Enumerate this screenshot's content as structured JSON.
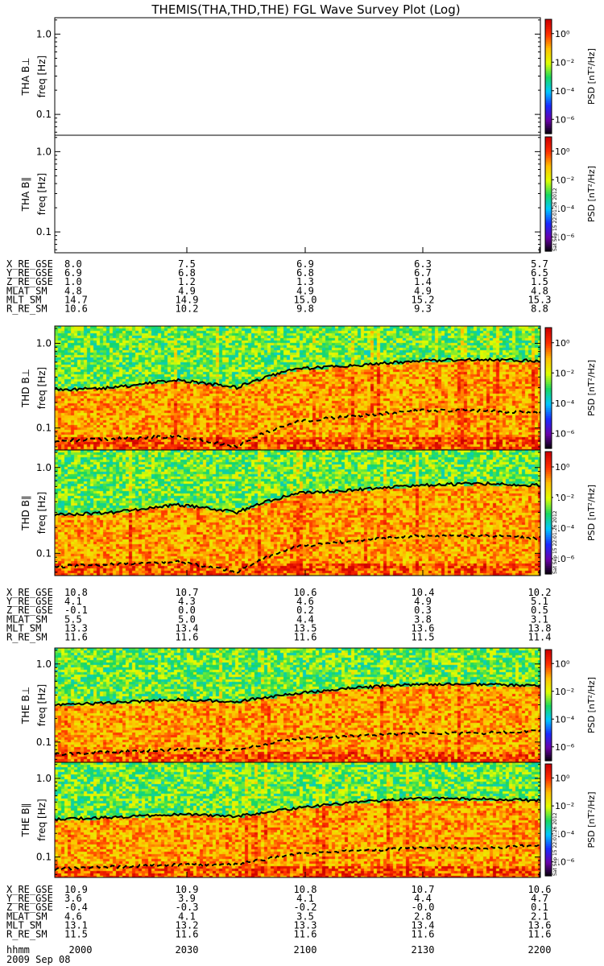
{
  "title": "THEMIS(THA,THD,THE) FGL Wave Survey Plot (Log)",
  "colors": {
    "colorscale": [
      "#000000",
      "#6a00aa",
      "#1a2bff",
      "#00c8ff",
      "#18d860",
      "#e0ff00",
      "#ffc000",
      "#ff3000",
      "#d00000"
    ],
    "trace": "#000000"
  },
  "colorbar": {
    "label": "PSD [nT²/Hz]",
    "ticks": [
      "10⁰",
      "10⁻²",
      "10⁻⁴",
      "10⁻⁶"
    ],
    "tick_exponents": [
      0,
      -2,
      -4,
      -6
    ],
    "range_exponents": [
      -7,
      1
    ]
  },
  "stamp": "Sat Sep 15 22:01:26 2012",
  "date_label": "2009 Sep 08",
  "time_axis_label": "hhmm",
  "time_ticks": [
    "2000",
    "2030",
    "2100",
    "2130",
    "2200"
  ],
  "chart_data": [
    {
      "type": "heatmap",
      "probe": "THA",
      "component": "⊥",
      "ylabel_probe": "THA B⊥",
      "ylabel": "freq [Hz]",
      "y_scale": "log",
      "ylim": [
        0.055,
        1.6
      ],
      "ytick_labels": [
        "1.0",
        "0.1"
      ],
      "ytick_values": [
        1.0,
        0.1
      ],
      "has_data": false
    },
    {
      "type": "heatmap",
      "probe": "THA",
      "component": "∥",
      "ylabel_probe": "THA B∥",
      "ylabel": "freq [Hz]",
      "y_scale": "log",
      "ylim": [
        0.055,
        1.6
      ],
      "ytick_labels": [
        "1.0",
        "0.1"
      ],
      "ytick_values": [
        1.0,
        0.1
      ],
      "has_data": false
    },
    {
      "type": "heatmap",
      "probe": "THD",
      "component": "⊥",
      "ylabel_probe": "THD B⊥",
      "ylabel": "freq [Hz]",
      "y_scale": "log",
      "ylim": [
        0.055,
        1.6
      ],
      "ytick_labels": [
        "1.0",
        "0.1"
      ],
      "ytick_values": [
        1.0,
        0.1
      ],
      "has_data": true,
      "seed": 11,
      "x_hours": [
        20.0,
        20.25,
        20.5,
        20.75,
        21.0,
        21.25,
        21.5,
        21.75,
        22.0
      ],
      "upper_line_hz": [
        0.28,
        0.3,
        0.37,
        0.3,
        0.5,
        0.55,
        0.62,
        0.65,
        0.62
      ],
      "lower_line_hz": [
        0.07,
        0.075,
        0.08,
        0.06,
        0.12,
        0.14,
        0.16,
        0.16,
        0.15
      ]
    },
    {
      "type": "heatmap",
      "probe": "THD",
      "component": "∥",
      "ylabel_probe": "THD B∥",
      "ylabel": "freq [Hz]",
      "y_scale": "log",
      "ylim": [
        0.055,
        1.6
      ],
      "ytick_labels": [
        "1.0",
        "0.1"
      ],
      "ytick_values": [
        1.0,
        0.1
      ],
      "has_data": true,
      "seed": 23,
      "x_hours": [
        20.0,
        20.25,
        20.5,
        20.75,
        21.0,
        21.25,
        21.5,
        21.75,
        22.0
      ],
      "upper_line_hz": [
        0.28,
        0.3,
        0.37,
        0.3,
        0.5,
        0.55,
        0.62,
        0.65,
        0.62
      ],
      "lower_line_hz": [
        0.07,
        0.075,
        0.08,
        0.06,
        0.12,
        0.14,
        0.16,
        0.16,
        0.15
      ]
    },
    {
      "type": "heatmap",
      "probe": "THE",
      "component": "⊥",
      "ylabel_probe": "THE B⊥",
      "ylabel": "freq [Hz]",
      "y_scale": "log",
      "ylim": [
        0.055,
        1.6
      ],
      "ytick_labels": [
        "1.0",
        "0.1"
      ],
      "ytick_values": [
        1.0,
        0.1
      ],
      "has_data": true,
      "seed": 37,
      "x_hours": [
        20.0,
        20.25,
        20.5,
        20.75,
        21.0,
        21.25,
        21.5,
        21.75,
        22.0
      ],
      "upper_line_hz": [
        0.3,
        0.32,
        0.35,
        0.33,
        0.42,
        0.5,
        0.55,
        0.55,
        0.52
      ],
      "lower_line_hz": [
        0.07,
        0.075,
        0.08,
        0.08,
        0.11,
        0.12,
        0.13,
        0.13,
        0.14
      ]
    },
    {
      "type": "heatmap",
      "probe": "THE",
      "component": "∥",
      "ylabel_probe": "THE B∥",
      "ylabel": "freq [Hz]",
      "y_scale": "log",
      "ylim": [
        0.055,
        1.6
      ],
      "ytick_labels": [
        "1.0",
        "0.1"
      ],
      "ytick_values": [
        1.0,
        0.1
      ],
      "has_data": true,
      "seed": 53,
      "x_hours": [
        20.0,
        20.25,
        20.5,
        20.75,
        21.0,
        21.25,
        21.5,
        21.75,
        22.0
      ],
      "upper_line_hz": [
        0.3,
        0.32,
        0.35,
        0.33,
        0.42,
        0.5,
        0.55,
        0.55,
        0.52
      ],
      "lower_line_hz": [
        0.07,
        0.075,
        0.08,
        0.08,
        0.11,
        0.12,
        0.13,
        0.13,
        0.14
      ]
    }
  ],
  "ephemeris": [
    {
      "probe": "THA",
      "rows": [
        {
          "label": "X_RE_GSE",
          "values": [
            "8.0",
            "7.5",
            "6.9",
            "6.3",
            "5.7"
          ]
        },
        {
          "label": "Y_RE_GSE",
          "values": [
            "6.9",
            "6.8",
            "6.8",
            "6.7",
            "6.5"
          ]
        },
        {
          "label": "Z_RE_GSE",
          "values": [
            "1.0",
            "1.2",
            "1.3",
            "1.4",
            "1.5"
          ]
        },
        {
          "label": "MLAT_SM",
          "values": [
            "4.8",
            "4.9",
            "4.9",
            "4.9",
            "4.8"
          ]
        },
        {
          "label": "MLT_SM",
          "values": [
            "14.7",
            "14.9",
            "15.0",
            "15.2",
            "15.3"
          ]
        },
        {
          "label": "R_RE_SM",
          "values": [
            "10.6",
            "10.2",
            "9.8",
            "9.3",
            "8.8"
          ]
        }
      ]
    },
    {
      "probe": "THD",
      "rows": [
        {
          "label": "X_RE_GSE",
          "values": [
            "10.8",
            "10.7",
            "10.6",
            "10.4",
            "10.2"
          ]
        },
        {
          "label": "Y_RE_GSE",
          "values": [
            "4.1",
            "4.3",
            "4.6",
            "4.9",
            "5.1"
          ]
        },
        {
          "label": "Z_RE_GSE",
          "values": [
            "-0.1",
            "0.0",
            "0.2",
            "0.3",
            "0.5"
          ]
        },
        {
          "label": "MLAT_SM",
          "values": [
            "5.5",
            "5.0",
            "4.4",
            "3.8",
            "3.1"
          ]
        },
        {
          "label": "MLT_SM",
          "values": [
            "13.3",
            "13.4",
            "13.5",
            "13.6",
            "13.8"
          ]
        },
        {
          "label": "R_RE_SM",
          "values": [
            "11.6",
            "11.6",
            "11.6",
            "11.5",
            "11.4"
          ]
        }
      ]
    },
    {
      "probe": "THE",
      "rows": [
        {
          "label": "X_RE_GSE",
          "values": [
            "10.9",
            "10.9",
            "10.8",
            "10.7",
            "10.6"
          ]
        },
        {
          "label": "Y_RE_GSE",
          "values": [
            "3.6",
            "3.9",
            "4.1",
            "4.4",
            "4.7"
          ]
        },
        {
          "label": "Z_RE_GSE",
          "values": [
            "-0.4",
            "-0.3",
            "-0.2",
            "-0.0",
            "0.1"
          ]
        },
        {
          "label": "MLAT_SM",
          "values": [
            "4.6",
            "4.1",
            "3.5",
            "2.8",
            "2.1"
          ]
        },
        {
          "label": "MLT_SM",
          "values": [
            "13.1",
            "13.2",
            "13.3",
            "13.4",
            "13.6"
          ]
        },
        {
          "label": "R_RE_SM",
          "values": [
            "11.5",
            "11.6",
            "11.6",
            "11.6",
            "11.6"
          ]
        }
      ]
    }
  ]
}
